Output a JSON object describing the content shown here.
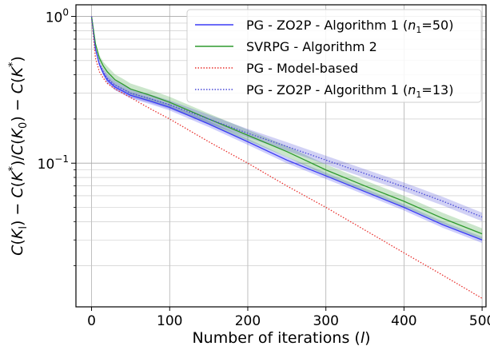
{
  "chart_data": {
    "type": "line",
    "title": "",
    "xlabel": "Number of iterations (l)",
    "ylabel": "C(K_l) − C(K*)/C(K_0) − C(K*)",
    "xlim": [
      -20,
      505
    ],
    "ylim": [
      0.0105,
      1.2
    ],
    "yscale": "log",
    "grid": true,
    "legend_position": "top-right",
    "x_ticks": [
      {
        "value": 0,
        "label": "0"
      },
      {
        "value": 100,
        "label": "100"
      },
      {
        "value": 200,
        "label": "200"
      },
      {
        "value": 300,
        "label": "300"
      },
      {
        "value": 400,
        "label": "400"
      },
      {
        "value": 500,
        "label": "500"
      }
    ],
    "y_major_ticks": [
      {
        "value": 1,
        "base": "10",
        "exponent": "0"
      },
      {
        "value": 0.1,
        "base": "10",
        "exponent": "−1"
      }
    ],
    "y_minor_ticks": [
      0.02,
      0.03,
      0.04,
      0.05,
      0.06,
      0.07,
      0.08,
      0.09,
      0.2,
      0.3,
      0.4,
      0.5,
      0.6,
      0.7,
      0.8,
      0.9
    ],
    "series": [
      {
        "name": "PG - ZO2P - Algorithm 1 (n1=50)",
        "legend": {
          "text": "PG - ZO2P - Algorithm 1 (",
          "var": "n",
          "sub": "1",
          "rest": "=50)"
        },
        "color": "#3b3bf5",
        "style": "solid",
        "band": 0.05,
        "x": [
          0,
          5,
          10,
          15,
          20,
          30,
          40,
          50,
          75,
          100,
          150,
          200,
          250,
          300,
          350,
          400,
          450,
          500
        ],
        "values": [
          1.0,
          0.6,
          0.47,
          0.41,
          0.37,
          0.33,
          0.31,
          0.29,
          0.265,
          0.24,
          0.185,
          0.14,
          0.105,
          0.082,
          0.064,
          0.05,
          0.038,
          0.03
        ]
      },
      {
        "name": "SVRPG - Algorithm 2",
        "legend": {
          "text": "SVRPG - Algorithm 2",
          "var": "",
          "sub": "",
          "rest": ""
        },
        "color": "#2e9a2e",
        "style": "solid",
        "band": 0.09,
        "x": [
          0,
          5,
          10,
          15,
          20,
          30,
          40,
          50,
          75,
          100,
          150,
          200,
          250,
          300,
          350,
          400,
          450,
          500
        ],
        "values": [
          1.0,
          0.65,
          0.52,
          0.46,
          0.42,
          0.37,
          0.345,
          0.32,
          0.29,
          0.26,
          0.2,
          0.155,
          0.12,
          0.09,
          0.07,
          0.055,
          0.042,
          0.033
        ]
      },
      {
        "name": "PG - Model-based",
        "legend": {
          "text": "PG - Model-based",
          "var": "",
          "sub": "",
          "rest": ""
        },
        "color": "#e8312e",
        "style": "dotted",
        "band": 0,
        "x": [
          0,
          5,
          10,
          15,
          20,
          30,
          40,
          50,
          75,
          100,
          150,
          200,
          250,
          300,
          350,
          400,
          450,
          500
        ],
        "values": [
          1.0,
          0.52,
          0.42,
          0.38,
          0.35,
          0.32,
          0.3,
          0.28,
          0.235,
          0.2,
          0.14,
          0.1,
          0.07,
          0.05,
          0.035,
          0.0245,
          0.0172,
          0.012
        ]
      },
      {
        "name": "PG - ZO2P - Algorithm 1 (n1=13)",
        "legend": {
          "text": "PG - ZO2P - Algorithm 1 (",
          "var": "n",
          "sub": "1",
          "rest": "=13)"
        },
        "color": "#4848d8",
        "style": "dotted",
        "band": 0.07,
        "x": [
          0,
          5,
          10,
          15,
          20,
          30,
          40,
          50,
          75,
          100,
          150,
          200,
          250,
          300,
          350,
          400,
          450,
          500
        ],
        "values": [
          1.0,
          0.6,
          0.48,
          0.42,
          0.38,
          0.34,
          0.32,
          0.3,
          0.275,
          0.25,
          0.2,
          0.16,
          0.13,
          0.105,
          0.085,
          0.069,
          0.055,
          0.043
        ]
      }
    ]
  }
}
